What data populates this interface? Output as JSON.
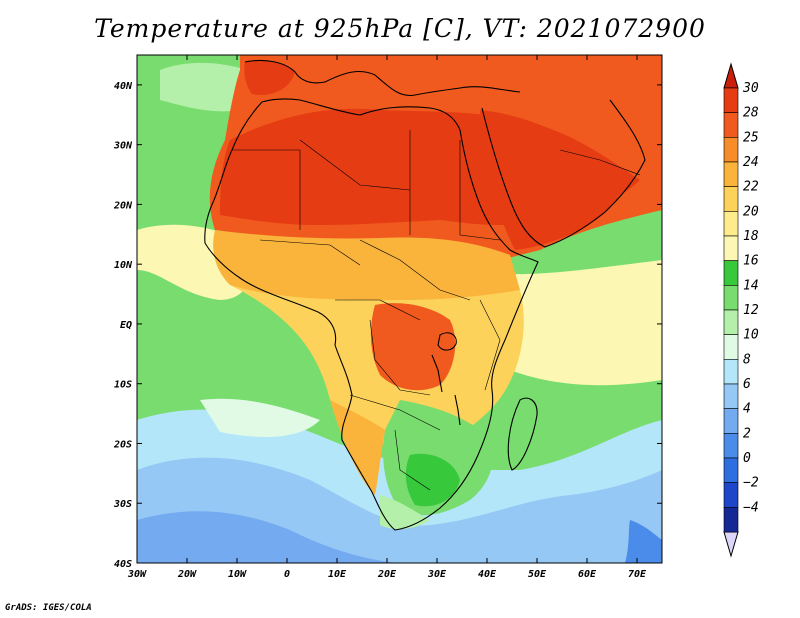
{
  "title": "Temperature at 925hPa [C], VT: 2021072900",
  "credit": "GrADS: IGES/COLA",
  "map": {
    "lon_range": [
      -30,
      75
    ],
    "lat_range": [
      -40,
      45
    ],
    "lon_ticks": [
      {
        "value": -30,
        "label": "30W"
      },
      {
        "value": -20,
        "label": "20W"
      },
      {
        "value": -10,
        "label": "10W"
      },
      {
        "value": 0,
        "label": "0"
      },
      {
        "value": 10,
        "label": "10E"
      },
      {
        "value": 20,
        "label": "20E"
      },
      {
        "value": 30,
        "label": "30E"
      },
      {
        "value": 40,
        "label": "40E"
      },
      {
        "value": 50,
        "label": "50E"
      },
      {
        "value": 60,
        "label": "60E"
      },
      {
        "value": 70,
        "label": "70E"
      }
    ],
    "lat_ticks": [
      {
        "value": 40,
        "label": "40N"
      },
      {
        "value": 30,
        "label": "30N"
      },
      {
        "value": 20,
        "label": "20N"
      },
      {
        "value": 10,
        "label": "10N"
      },
      {
        "value": 0,
        "label": "EQ"
      },
      {
        "value": -10,
        "label": "10S"
      },
      {
        "value": -20,
        "label": "20S"
      },
      {
        "value": -30,
        "label": "30S"
      },
      {
        "value": -40,
        "label": "40S"
      }
    ]
  },
  "colorbar": {
    "levels": [
      {
        "label": "30",
        "color": "#e63c14"
      },
      {
        "label": "28",
        "color": "#f05a1e"
      },
      {
        "label": "25",
        "color": "#f78c28"
      },
      {
        "label": "24",
        "color": "#fab43c"
      },
      {
        "label": "22",
        "color": "#fcd25a"
      },
      {
        "label": "20",
        "color": "#fdeb8c"
      },
      {
        "label": "18",
        "color": "#fdf7b4"
      },
      {
        "label": "16",
        "color": "#37c83c"
      },
      {
        "label": "14",
        "color": "#78dc6e"
      },
      {
        "label": "12",
        "color": "#b4f0aa"
      },
      {
        "label": "10",
        "color": "#e1fae6"
      },
      {
        "label": "8",
        "color": "#b4e6fa"
      },
      {
        "label": "6",
        "color": "#96c8f5"
      },
      {
        "label": "4",
        "color": "#73aaf0"
      },
      {
        "label": "2",
        "color": "#4b8ceb"
      },
      {
        "label": "0",
        "color": "#2d6ee1"
      },
      {
        "label": "−2",
        "color": "#1e46c8"
      },
      {
        "label": "−4",
        "color": "#142896"
      }
    ],
    "over_color": "#c81e0a",
    "under_color": "#dcd7fa"
  },
  "regions": {
    "ocean_south_cold": "#96c8f5",
    "ocean_south_mid": "#b4e6fa",
    "ocean_atlantic": "#78dc6e",
    "ocean_warm": "#fdf7b4",
    "sahara": "#e63c14",
    "north_africa": "#f05a1e",
    "sahel": "#fab43c",
    "central": "#fcd25a",
    "congo_hot": "#f05a1e",
    "southern_africa": "#78dc6e",
    "south_africa_cool": "#37c83c"
  }
}
